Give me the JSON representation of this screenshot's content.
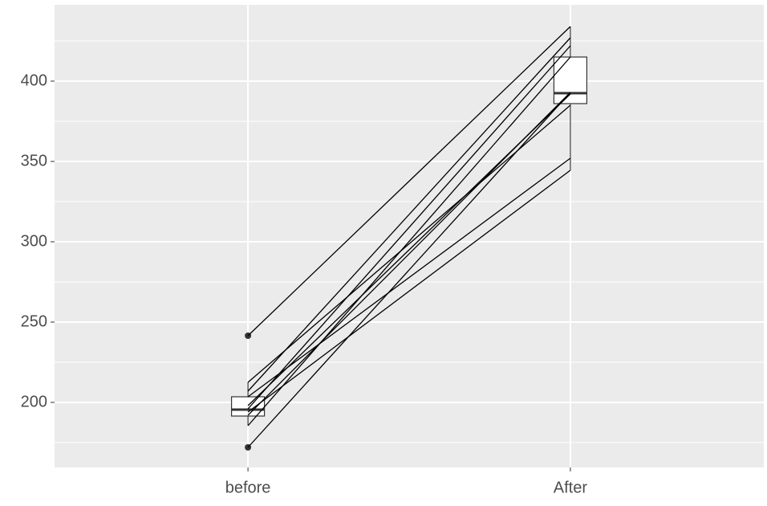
{
  "chart_data": {
    "type": "boxplot",
    "categories": [
      "before",
      "After"
    ],
    "boxes": [
      {
        "whisker_low": 185.5,
        "q1": 191.5,
        "median": 195.5,
        "q3": 203.5,
        "whisker_high": 212.5,
        "outliers": [
          241.5,
          172
        ]
      },
      {
        "whisker_low": 344.5,
        "q1": 386,
        "median": 392.5,
        "q3": 415,
        "whisker_high": 434,
        "outliers": []
      }
    ],
    "lines": [
      {
        "values": [
          241.5,
          434
        ]
      },
      {
        "values": [
          172,
          393
        ]
      },
      {
        "values": [
          212.5,
          385
        ]
      },
      {
        "values": [
          207,
          427
        ]
      },
      {
        "values": [
          203.5,
          352
        ]
      },
      {
        "values": [
          198,
          392
        ]
      },
      {
        "values": [
          196,
          422
        ]
      },
      {
        "values": [
          194,
          344.5
        ]
      },
      {
        "values": [
          192,
          393
        ]
      },
      {
        "values": [
          185.5,
          415
        ]
      }
    ],
    "ylim": [
      159.5,
      447.5
    ],
    "yticks": [
      200,
      250,
      300,
      350,
      400
    ],
    "yminor": [
      175,
      225,
      275,
      325,
      375,
      425
    ],
    "grid": true
  }
}
